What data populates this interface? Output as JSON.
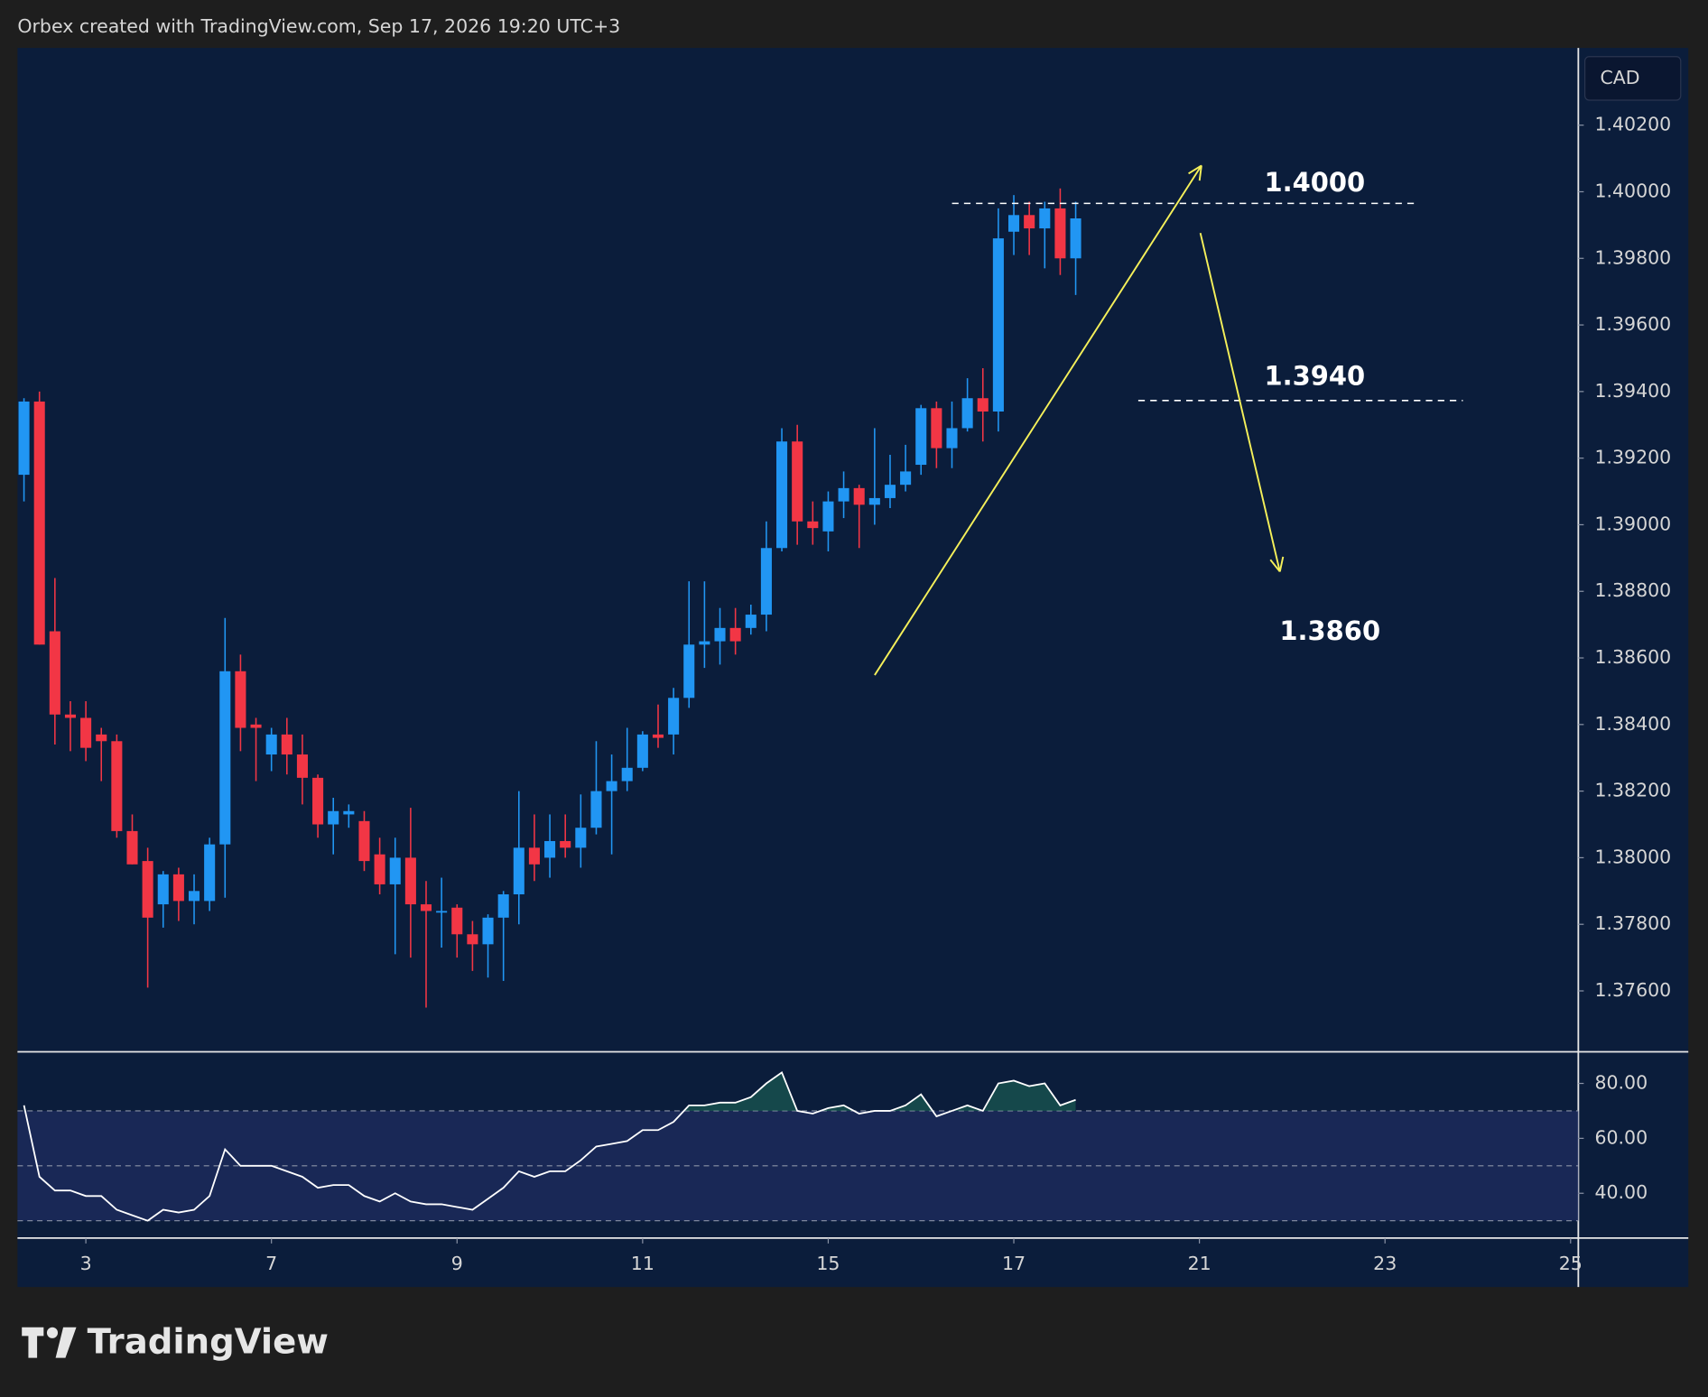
{
  "header": {
    "title": "Orbex created with TradingView.com, Sep 17, 2026 19:20 UTC+3"
  },
  "footer": {
    "logo": "TradingView"
  },
  "chart_data": [
    {
      "type": "candlestick",
      "currency": "CAD",
      "up_color": "#2196f3",
      "down_color": "#f23645",
      "open": [
        1.3915,
        1.3937,
        1.3868,
        1.3843,
        1.3842,
        1.3837,
        1.3835,
        1.3808,
        1.3799,
        1.3786,
        1.3795,
        1.3787,
        1.3787,
        1.3804,
        1.3856,
        1.384,
        1.3831,
        1.3837,
        1.3831,
        1.3824,
        1.381,
        1.3813,
        1.3811,
        1.3801,
        1.3792,
        1.38,
        1.3786,
        1.3784,
        1.3785,
        1.3777,
        1.3774,
        1.3782,
        1.3789,
        1.3803,
        1.38,
        1.3805,
        1.3803,
        1.3809,
        1.382,
        1.3823,
        1.3827,
        1.3837,
        1.3837,
        1.3848,
        1.3864,
        1.3865,
        1.3869,
        1.3869,
        1.3873,
        1.3893,
        1.3925,
        1.3901,
        1.3898,
        1.3907,
        1.3911,
        1.3906,
        1.3908,
        1.3912,
        1.3918,
        1.3935,
        1.3923,
        1.3929,
        1.3938,
        1.3934,
        1.3988,
        1.3993,
        1.3989,
        1.3995,
        1.398
      ],
      "high": [
        1.3938,
        1.394,
        1.3884,
        1.3847,
        1.3847,
        1.3839,
        1.3837,
        1.3813,
        1.3803,
        1.3796,
        1.3797,
        1.3795,
        1.3806,
        1.3872,
        1.3861,
        1.3842,
        1.3839,
        1.3842,
        1.3837,
        1.3825,
        1.3818,
        1.3816,
        1.3814,
        1.3806,
        1.3806,
        1.3815,
        1.3793,
        1.3794,
        1.3786,
        1.3781,
        1.3783,
        1.379,
        1.382,
        1.3813,
        1.3813,
        1.3813,
        1.3819,
        1.3835,
        1.3831,
        1.3839,
        1.3838,
        1.3846,
        1.3851,
        1.3883,
        1.3883,
        1.3875,
        1.3875,
        1.3876,
        1.3901,
        1.3929,
        1.393,
        1.3907,
        1.391,
        1.3916,
        1.3912,
        1.3929,
        1.3921,
        1.3924,
        1.3936,
        1.3937,
        1.3937,
        1.3944,
        1.3947,
        1.3995,
        1.3999,
        1.3997,
        1.3997,
        1.4001,
        1.3997
      ],
      "low": [
        1.3907,
        1.3864,
        1.3834,
        1.3832,
        1.3829,
        1.3823,
        1.3806,
        1.3798,
        1.3761,
        1.3779,
        1.3781,
        1.378,
        1.3784,
        1.3788,
        1.3832,
        1.3823,
        1.3826,
        1.3825,
        1.3816,
        1.3806,
        1.3801,
        1.3809,
        1.3796,
        1.3789,
        1.3771,
        1.377,
        1.3755,
        1.3773,
        1.377,
        1.3766,
        1.3764,
        1.3763,
        1.378,
        1.3793,
        1.3794,
        1.38,
        1.3797,
        1.3807,
        1.3801,
        1.382,
        1.3826,
        1.3833,
        1.3831,
        1.3845,
        1.3857,
        1.3858,
        1.3861,
        1.3867,
        1.3868,
        1.3892,
        1.3894,
        1.3894,
        1.3892,
        1.3902,
        1.3893,
        1.39,
        1.3905,
        1.391,
        1.3915,
        1.3917,
        1.3917,
        1.3928,
        1.3925,
        1.3928,
        1.3981,
        1.3981,
        1.3977,
        1.3975,
        1.3969
      ],
      "close": [
        1.3937,
        1.3864,
        1.3843,
        1.3842,
        1.3833,
        1.3835,
        1.3808,
        1.3798,
        1.3782,
        1.3795,
        1.3787,
        1.379,
        1.3804,
        1.3856,
        1.3839,
        1.3839,
        1.3837,
        1.3831,
        1.3824,
        1.381,
        1.3814,
        1.3814,
        1.3799,
        1.3792,
        1.38,
        1.3786,
        1.3784,
        1.3784,
        1.3777,
        1.3774,
        1.3782,
        1.3789,
        1.3803,
        1.3798,
        1.3805,
        1.3803,
        1.3809,
        1.382,
        1.3823,
        1.3827,
        1.3837,
        1.3836,
        1.3848,
        1.3864,
        1.3865,
        1.3869,
        1.3865,
        1.3873,
        1.3893,
        1.3925,
        1.3901,
        1.3899,
        1.3907,
        1.3911,
        1.3906,
        1.3908,
        1.3912,
        1.3916,
        1.3935,
        1.3923,
        1.3929,
        1.3938,
        1.3934,
        1.3986,
        1.3993,
        1.3989,
        1.3995,
        1.398,
        1.3992
      ],
      "xlim": [
        -0.42,
        100.5
      ],
      "xticks": [
        {
          "value": 4,
          "label": "3"
        },
        {
          "value": 16,
          "label": "7"
        },
        {
          "value": 28,
          "label": "9"
        },
        {
          "value": 40,
          "label": "11"
        },
        {
          "value": 52,
          "label": "15"
        },
        {
          "value": 64,
          "label": "17"
        },
        {
          "value": 76,
          "label": "21"
        },
        {
          "value": 88,
          "label": "23"
        },
        {
          "value": 100,
          "label": "25"
        }
      ],
      "ylim": [
        1.37417,
        1.40432
      ],
      "yticks": [
        {
          "value": 1.402,
          "label": "1.40200"
        },
        {
          "value": 1.4,
          "label": "1.40000"
        },
        {
          "value": 1.398,
          "label": "1.39800"
        },
        {
          "value": 1.396,
          "label": "1.39600"
        },
        {
          "value": 1.394,
          "label": "1.39400"
        },
        {
          "value": 1.392,
          "label": "1.39200"
        },
        {
          "value": 1.39,
          "label": "1.39000"
        },
        {
          "value": 1.388,
          "label": "1.38800"
        },
        {
          "value": 1.386,
          "label": "1.38600"
        },
        {
          "value": 1.384,
          "label": "1.38400"
        },
        {
          "value": 1.382,
          "label": "1.38200"
        },
        {
          "value": 1.38,
          "label": "1.38000"
        },
        {
          "value": 1.378,
          "label": "1.37800"
        },
        {
          "value": 1.376,
          "label": "1.37600"
        }
      ],
      "hlines": [
        1.39965,
        1.39373
      ],
      "annotations": [
        "1.4000",
        "1.3940",
        "1.3860"
      ]
    },
    {
      "type": "line",
      "color": "#ffffff",
      "values": [
        72,
        46,
        41,
        41,
        39,
        39,
        34,
        32,
        30,
        34,
        33,
        34,
        39,
        56,
        50,
        50,
        50,
        48,
        46,
        42,
        43,
        43,
        39,
        37,
        40,
        37,
        36,
        36,
        35,
        34,
        38,
        42,
        48,
        46,
        48,
        48,
        52,
        57,
        58,
        59,
        63,
        63,
        66,
        72,
        72,
        73,
        73,
        75,
        80,
        84,
        70,
        69,
        71,
        72,
        69,
        70,
        70,
        72,
        76,
        68,
        70,
        72,
        70,
        80,
        81,
        79,
        80,
        72,
        74
      ],
      "ylim": [
        23.7,
        91.5
      ],
      "yticks": [
        {
          "value": 80,
          "label": "80.00"
        },
        {
          "value": 60,
          "label": "60.00"
        },
        {
          "value": 40,
          "label": "40.00"
        }
      ],
      "levels": [
        70,
        50,
        30
      ]
    }
  ]
}
